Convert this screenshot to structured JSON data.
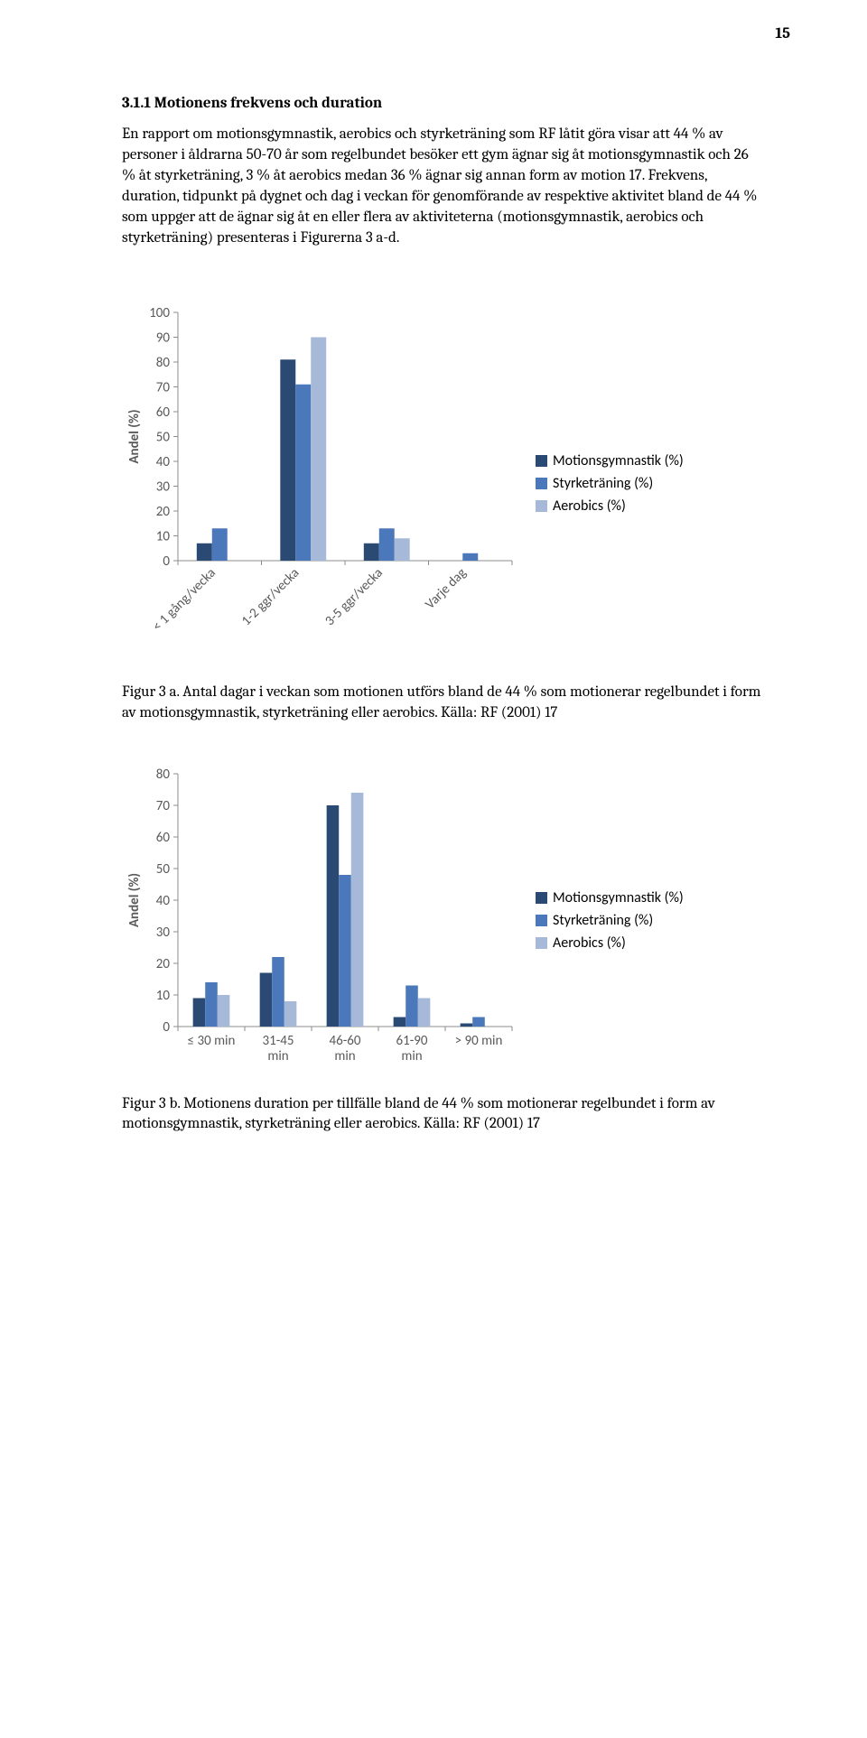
{
  "page_number": "15",
  "heading": "3.1.1   Motionens frekvens och duration",
  "paragraph": "En rapport om motionsgymnastik, aerobics och styrketräning som RF låtit göra visar att 44 % av personer i åldrarna 50-70 år som regelbundet besöker ett gym ägnar sig åt motionsgymnastik och 26 % åt styrketräning, 3 % åt aerobics medan 36 % ägnar sig annan form av motion 17. Frekvens, duration, tidpunkt på dygnet och dag i veckan för genomförande av respektive aktivitet bland de 44 % som uppger att de ägnar sig åt en eller flera av aktiviteterna (motionsgymnastik, aerobics och styrketräning) presenteras i Figurerna 3 a-d.",
  "colors": {
    "series1": "#2a4a73",
    "series2": "#4a78ba",
    "series3": "#a6b9d9",
    "axis": "#8c8c8c",
    "grid": "#d9d9d9",
    "tick_text": "#595959"
  },
  "legend_labels": {
    "s1": "Motionsgymnastik (%)",
    "s2": "Styrketräning (%)",
    "s3": "Aerobics (%)"
  },
  "chart1": {
    "y_title": "Andel (%)",
    "ylim": [
      0,
      100
    ],
    "ytick_step": 10,
    "categories": [
      "< 1 gång/vecka",
      "1-2 ggr/vecka",
      "3-5 ggr/vecka",
      "Varje dag"
    ],
    "series": {
      "Motionsgymnastik": [
        7,
        81,
        7,
        0
      ],
      "Styrketräning": [
        13,
        71,
        13,
        3
      ],
      "Aerobics": [
        0,
        90,
        9,
        0
      ]
    },
    "rotated_labels": true
  },
  "caption1": "Figur 3 a. Antal dagar i veckan som motionen utförs bland de 44 % som motionerar regelbundet i form av motionsgymnastik, styrketräning eller aerobics. Källa: RF (2001) 17",
  "chart2": {
    "y_title": "Andel (%)",
    "ylim": [
      0,
      80
    ],
    "ytick_step": 10,
    "categories": [
      "≤ 30 min",
      "31-45 min",
      "46-60 min",
      "61-90 min",
      "> 90 min"
    ],
    "series": {
      "Motionsgymnastik": [
        9,
        17,
        70,
        3,
        1
      ],
      "Styrketräning": [
        14,
        22,
        48,
        13,
        3
      ],
      "Aerobics": [
        10,
        8,
        74,
        9,
        0
      ]
    },
    "rotated_labels": false,
    "multiline_labels": [
      [
        "≤ 30 min"
      ],
      [
        "31-45",
        "min"
      ],
      [
        "46-60",
        "min"
      ],
      [
        "61-90",
        "min"
      ],
      [
        "> 90 min"
      ]
    ]
  },
  "caption2": "Figur 3 b. Motionens duration per tillfälle bland de 44 % som motionerar regelbundet i form av motionsgymnastik, styrketräning eller aerobics. Källa: RF (2001) 17"
}
